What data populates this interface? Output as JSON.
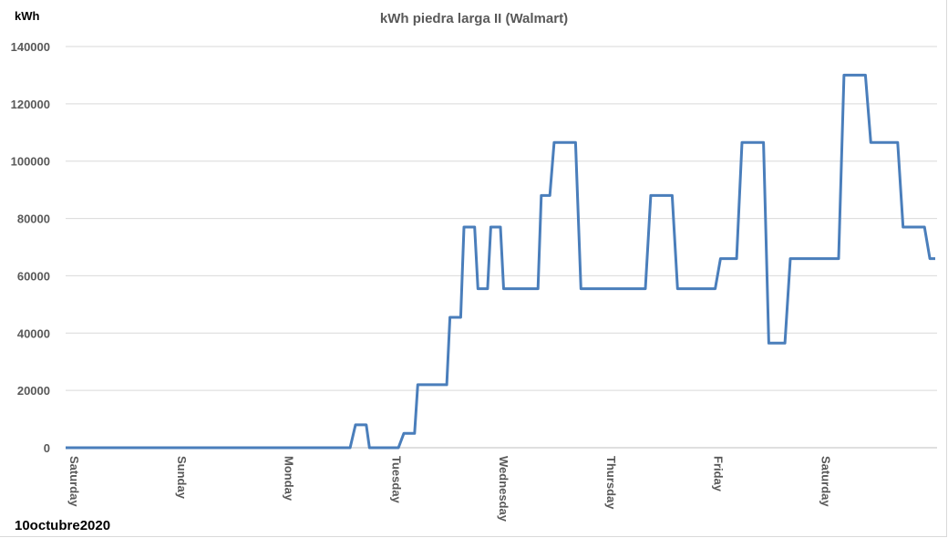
{
  "chart_data": {
    "type": "line",
    "title": "kWh piedra larga II (Walmart)",
    "ylabel": "kWh",
    "xlabel": "",
    "ylim": [
      0,
      140000
    ],
    "yticks": [
      0,
      20000,
      40000,
      60000,
      80000,
      100000,
      120000,
      140000
    ],
    "categories": [
      "Saturday",
      "Sunday",
      "Monday",
      "Tuesday",
      "Wednesday",
      "Thursday",
      "Friday",
      "Saturday"
    ],
    "xlim": [
      0,
      8.1
    ],
    "grid": true,
    "legend": "none",
    "color": "#4a7ebb",
    "series": [
      {
        "x": [
          0,
          2.65,
          2.7,
          2.8,
          2.83,
          3.1,
          3.15,
          3.25,
          3.28,
          3.55,
          3.58,
          3.68,
          3.71,
          3.81,
          3.84,
          3.93,
          3.96,
          4.05,
          4.08,
          4.4,
          4.43,
          4.51,
          4.55,
          4.75,
          4.8,
          5.4,
          5.45,
          5.65,
          5.7,
          6.05,
          6.1,
          6.25,
          6.3,
          6.5,
          6.55,
          6.7,
          6.75,
          7.2,
          7.25,
          7.45,
          7.5,
          7.75,
          7.8,
          8.0,
          8.05,
          8.1
        ],
        "y": [
          0,
          0,
          8000,
          8000,
          0,
          0,
          5000,
          5000,
          22000,
          22000,
          45500,
          45500,
          77000,
          77000,
          55500,
          55500,
          77000,
          77000,
          55500,
          55500,
          88000,
          88000,
          106500,
          106500,
          55500,
          55500,
          88000,
          88000,
          55500,
          55500,
          66000,
          66000,
          106500,
          106500,
          36500,
          36500,
          66000,
          66000,
          130000,
          130000,
          106500,
          106500,
          77000,
          77000,
          66000,
          66000
        ]
      }
    ]
  },
  "footnote": "10octubre2020"
}
